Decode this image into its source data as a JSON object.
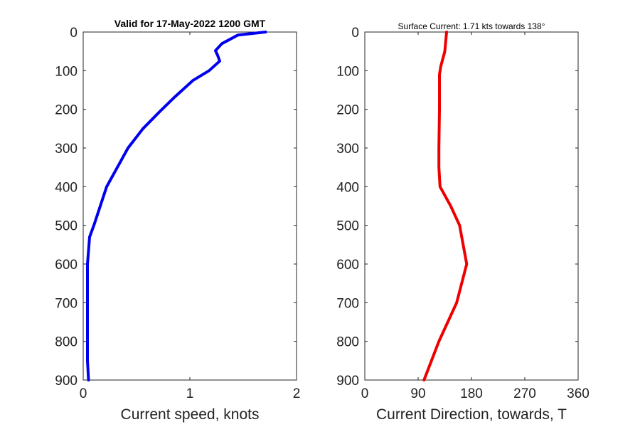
{
  "chart_data": [
    {
      "type": "line",
      "title": "Valid for 17-May-2022 1200 GMT",
      "xlabel": "Current speed, knots",
      "ylabel": "",
      "xlim": [
        0,
        2
      ],
      "ylim": [
        900,
        0
      ],
      "y_reversed": true,
      "xticks": [
        0,
        1,
        2
      ],
      "yticks": [
        0,
        100,
        200,
        300,
        400,
        500,
        600,
        700,
        800,
        900
      ],
      "grid": false,
      "series": [
        {
          "color": "#0000ee",
          "points": [
            [
              1.71,
              0
            ],
            [
              1.45,
              8
            ],
            [
              1.3,
              30
            ],
            [
              1.24,
              48
            ],
            [
              1.26,
              60
            ],
            [
              1.28,
              75
            ],
            [
              1.18,
              100
            ],
            [
              1.03,
              125
            ],
            [
              0.85,
              170
            ],
            [
              0.72,
              205
            ],
            [
              0.56,
              250
            ],
            [
              0.42,
              300
            ],
            [
              0.32,
              350
            ],
            [
              0.22,
              400
            ],
            [
              0.1,
              500
            ],
            [
              0.06,
              530
            ],
            [
              0.04,
              600
            ],
            [
              0.04,
              700
            ],
            [
              0.04,
              850
            ],
            [
              0.05,
              900
            ]
          ]
        }
      ]
    },
    {
      "type": "line",
      "title": "Surface Current: 1.71 kts towards 138°",
      "xlabel": "Current Direction, towards, T",
      "ylabel": "",
      "xlim": [
        0,
        360
      ],
      "ylim": [
        900,
        0
      ],
      "y_reversed": true,
      "xticks": [
        0,
        90,
        180,
        270,
        360
      ],
      "yticks": [
        0,
        100,
        200,
        300,
        400,
        500,
        600,
        700,
        800,
        900
      ],
      "grid": false,
      "series": [
        {
          "color": "#ee0000",
          "points": [
            [
              138,
              0
            ],
            [
              135,
              50
            ],
            [
              128,
              90
            ],
            [
              126,
              110
            ],
            [
              126,
              200
            ],
            [
              125,
              300
            ],
            [
              125,
              350
            ],
            [
              127,
              400
            ],
            [
              145,
              450
            ],
            [
              160,
              500
            ],
            [
              172,
              600
            ],
            [
              155,
              700
            ],
            [
              125,
              800
            ],
            [
              100,
              900
            ]
          ]
        }
      ]
    }
  ]
}
